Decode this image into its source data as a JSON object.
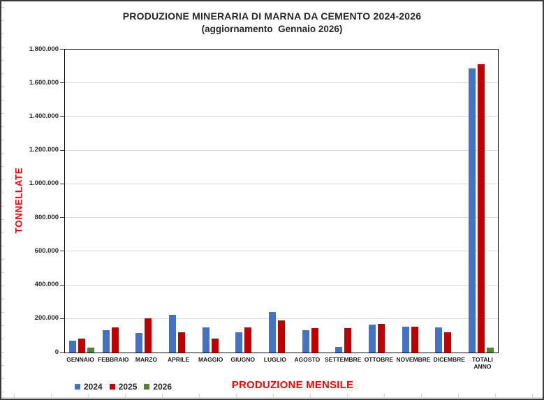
{
  "chart_data": {
    "type": "bar",
    "title": "PRODUZIONE MINERARIA DI MARNA DA CEMENTO 2024-2026",
    "subtitle": "(aggiornamento  Gennaio 2026)",
    "xlabel": "PRODUZIONE MENSILE",
    "ylabel": "TONNELLATE",
    "ylim": [
      0,
      1800000
    ],
    "ytick_step": 200000,
    "ytick_labels": [
      "0",
      "200.000",
      "400.000",
      "600.000",
      "800.000",
      "1.000.000",
      "1.200.000",
      "1.400.000",
      "1.600.000",
      "1.800.000"
    ],
    "grid": true,
    "legend_position": "bottom-left",
    "categories": [
      "GENNAIO",
      "FEBBRAIO",
      "MARZO",
      "APRILE",
      "MAGGIO",
      "GIUGNO",
      "LUGLIO",
      "AGOSTO",
      "SETTEMBRE",
      "OTTOBRE",
      "NOVEMBRE",
      "DICEMBRE",
      "TOTALI ANNO"
    ],
    "series": [
      {
        "name": "2024",
        "color": "#4472C4",
        "values": [
          70000,
          132000,
          117000,
          224000,
          151000,
          122000,
          240000,
          131000,
          34000,
          168000,
          152000,
          148000,
          1689000
        ]
      },
      {
        "name": "2025",
        "color": "#C00000",
        "values": [
          85000,
          148000,
          205000,
          121000,
          81000,
          151000,
          190000,
          144000,
          144000,
          171000,
          152000,
          120000,
          1712000
        ]
      },
      {
        "name": "2026",
        "color": "#548235",
        "values": [
          28000,
          null,
          null,
          null,
          null,
          null,
          null,
          null,
          null,
          null,
          null,
          null,
          28000
        ]
      }
    ]
  },
  "colors": {
    "axis_title_red": "#FF0000",
    "gridline": "#D9D9D9",
    "plot_border": "#000000",
    "series_2024": "#4472C4",
    "series_2025": "#C00000",
    "series_2026": "#548235"
  }
}
